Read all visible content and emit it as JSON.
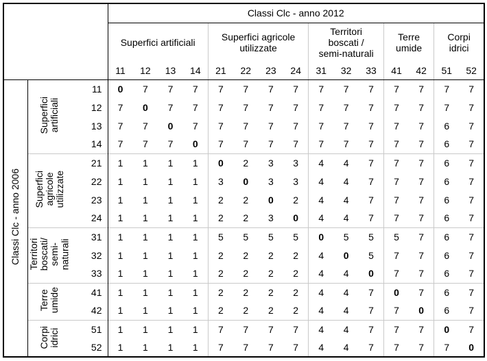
{
  "styles": {
    "line_black": "#000000",
    "grid_gray": "#c9c9c9",
    "background": "#ffffff",
    "text_color": "#000000"
  },
  "chart_data": {
    "type": "table",
    "title_cols": "Classi Clc - anno 2012",
    "title_rows": "Classi Clc - anno 2006",
    "col_groups": [
      {
        "label": "Superfici artificiali",
        "ids": [
          "11",
          "12",
          "13",
          "14"
        ]
      },
      {
        "label": "Superfici agricole\nutilizzate",
        "ids": [
          "21",
          "22",
          "23",
          "24"
        ]
      },
      {
        "label": "Territori\nboscati /\nsemi-naturali",
        "ids": [
          "31",
          "32",
          "33"
        ]
      },
      {
        "label": "Terre\numide",
        "ids": [
          "41",
          "42"
        ]
      },
      {
        "label": "Corpi\nidrici",
        "ids": [
          "51",
          "52"
        ]
      }
    ],
    "row_groups": [
      {
        "label": "Superfici\nartificiali",
        "ids": [
          "11",
          "12",
          "13",
          "14"
        ]
      },
      {
        "label": "Superfici\nagricole\nutilizzate",
        "ids": [
          "21",
          "22",
          "23",
          "24"
        ]
      },
      {
        "label": "Territori\nboscati/\nsemi-\nnaturali",
        "ids": [
          "31",
          "32",
          "33"
        ]
      },
      {
        "label": "Terre\numide",
        "ids": [
          "41",
          "42"
        ]
      },
      {
        "label": "Corpi\nidrici",
        "ids": [
          "51",
          "52"
        ]
      }
    ],
    "rows": [
      {
        "id": "11",
        "values": [
          0,
          7,
          7,
          7,
          7,
          7,
          7,
          7,
          7,
          7,
          7,
          7,
          7,
          7,
          7
        ]
      },
      {
        "id": "12",
        "values": [
          7,
          0,
          7,
          7,
          7,
          7,
          7,
          7,
          7,
          7,
          7,
          7,
          7,
          7,
          7
        ]
      },
      {
        "id": "13",
        "values": [
          7,
          7,
          0,
          7,
          7,
          7,
          7,
          7,
          7,
          7,
          7,
          7,
          7,
          6,
          7
        ]
      },
      {
        "id": "14",
        "values": [
          7,
          7,
          7,
          0,
          7,
          7,
          7,
          7,
          7,
          7,
          7,
          7,
          7,
          6,
          7
        ]
      },
      {
        "id": "21",
        "values": [
          1,
          1,
          1,
          1,
          0,
          2,
          3,
          3,
          4,
          4,
          7,
          7,
          7,
          6,
          7
        ]
      },
      {
        "id": "22",
        "values": [
          1,
          1,
          1,
          1,
          3,
          0,
          3,
          3,
          4,
          4,
          7,
          7,
          7,
          6,
          7
        ]
      },
      {
        "id": "23",
        "values": [
          1,
          1,
          1,
          1,
          2,
          2,
          0,
          2,
          4,
          4,
          7,
          7,
          7,
          6,
          7
        ]
      },
      {
        "id": "24",
        "values": [
          1,
          1,
          1,
          1,
          2,
          2,
          3,
          0,
          4,
          4,
          7,
          7,
          7,
          6,
          7
        ]
      },
      {
        "id": "31",
        "values": [
          1,
          1,
          1,
          1,
          5,
          5,
          5,
          5,
          0,
          5,
          5,
          5,
          7,
          6,
          7
        ]
      },
      {
        "id": "32",
        "values": [
          1,
          1,
          1,
          1,
          2,
          2,
          2,
          2,
          4,
          0,
          5,
          7,
          7,
          6,
          7
        ]
      },
      {
        "id": "33",
        "values": [
          1,
          1,
          1,
          1,
          2,
          2,
          2,
          2,
          4,
          4,
          0,
          7,
          7,
          6,
          7
        ]
      },
      {
        "id": "41",
        "values": [
          1,
          1,
          1,
          1,
          2,
          2,
          2,
          2,
          4,
          4,
          7,
          0,
          7,
          6,
          7
        ]
      },
      {
        "id": "42",
        "values": [
          1,
          1,
          1,
          1,
          2,
          2,
          2,
          2,
          4,
          4,
          7,
          7,
          0,
          6,
          7
        ]
      },
      {
        "id": "51",
        "values": [
          1,
          1,
          1,
          1,
          7,
          7,
          7,
          7,
          4,
          4,
          7,
          7,
          7,
          0,
          7
        ]
      },
      {
        "id": "52",
        "values": [
          1,
          1,
          1,
          1,
          7,
          7,
          7,
          7,
          4,
          4,
          7,
          7,
          7,
          7,
          0
        ]
      }
    ]
  }
}
